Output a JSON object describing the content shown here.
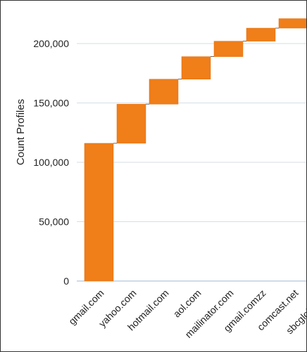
{
  "chart_data": {
    "type": "waterfall",
    "title": "",
    "xlabel": "",
    "ylabel": "Count Profiles",
    "ylim": [
      0,
      205000
    ],
    "grid": true,
    "categories": [
      "gmail.com",
      "yahoo.com",
      "hotmail.com",
      "aol.com",
      "mailinator.com",
      "gmail.comzz",
      "comcast.net",
      "sbcglobal.net"
    ],
    "values": [
      116000,
      33000,
      21000,
      19000,
      13000,
      11000,
      8000,
      7000
    ],
    "y_ticks": [
      {
        "value": 0,
        "label": "0"
      },
      {
        "value": 50000,
        "label": "50,000"
      },
      {
        "value": 100000,
        "label": "100,000"
      },
      {
        "value": 150000,
        "label": "150,000"
      },
      {
        "value": 200000,
        "label": "200,000"
      }
    ],
    "colors": {
      "bar": "#F07E19",
      "bar_edge": "#E06F10",
      "grid": "#D6DEE6",
      "baseline": "#9BB9D6",
      "connector": "#444444"
    }
  }
}
